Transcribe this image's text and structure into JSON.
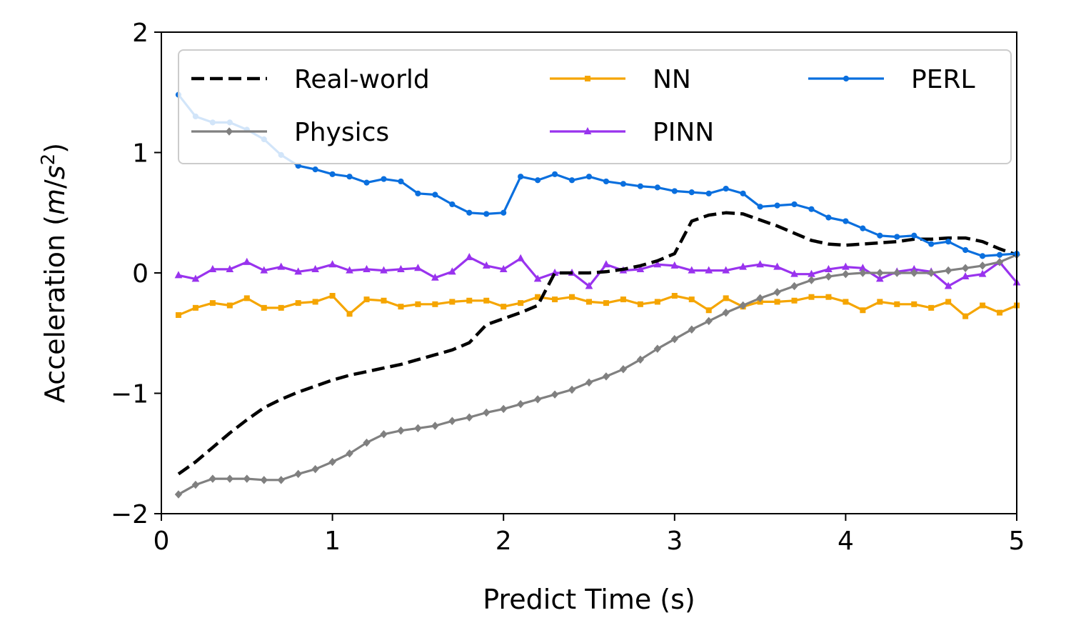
{
  "chart_data": {
    "type": "line",
    "title": "",
    "xlabel": "Predict Time (s)",
    "ylabel": {
      "prefix": "Acceleration (",
      "var": "m",
      "slash": "/",
      "var2": "s",
      "sup": "2",
      "suffix": ")"
    },
    "xlim": [
      0,
      5
    ],
    "ylim": [
      -2,
      2
    ],
    "xticks": [
      0,
      1,
      2,
      3,
      4,
      5
    ],
    "yticks": [
      -2,
      -1,
      0,
      1,
      2
    ],
    "xtick_labels": [
      "0",
      "1",
      "2",
      "3",
      "4",
      "5"
    ],
    "ytick_labels": [
      "−2",
      "−1",
      "0",
      "1",
      "2"
    ],
    "grid": false,
    "legend": {
      "placement": "top",
      "columns": 3
    },
    "x": [
      0.1,
      0.2,
      0.3,
      0.4,
      0.5,
      0.6,
      0.7,
      0.8,
      0.9,
      1.0,
      1.1,
      1.2,
      1.3,
      1.4,
      1.5,
      1.6,
      1.7,
      1.8,
      1.9,
      2.0,
      2.1,
      2.2,
      2.3,
      2.4,
      2.5,
      2.6,
      2.7,
      2.8,
      2.9,
      3.0,
      3.1,
      3.2,
      3.3,
      3.4,
      3.5,
      3.6,
      3.7,
      3.8,
      3.9,
      4.0,
      4.1,
      4.2,
      4.3,
      4.4,
      4.5,
      4.6,
      4.7,
      4.8,
      4.9,
      5.0
    ],
    "series": [
      {
        "name": "Real-world",
        "color": "#000000",
        "marker": "none",
        "dash": true,
        "values": [
          -1.67,
          -1.57,
          -1.45,
          -1.33,
          -1.22,
          -1.12,
          -1.05,
          -0.99,
          -0.94,
          -0.89,
          -0.85,
          -0.82,
          -0.79,
          -0.76,
          -0.72,
          -0.68,
          -0.64,
          -0.58,
          -0.43,
          -0.38,
          -0.33,
          -0.27,
          0.0,
          0.0,
          0.0,
          0.01,
          0.03,
          0.06,
          0.1,
          0.16,
          0.43,
          0.48,
          0.5,
          0.49,
          0.44,
          0.39,
          0.33,
          0.27,
          0.24,
          0.23,
          0.24,
          0.25,
          0.26,
          0.28,
          0.28,
          0.29,
          0.29,
          0.26,
          0.2,
          0.15
        ]
      },
      {
        "name": "Physics",
        "color": "#808080",
        "marker": "diamond",
        "dash": false,
        "values": [
          -1.84,
          -1.76,
          -1.71,
          -1.71,
          -1.71,
          -1.72,
          -1.72,
          -1.67,
          -1.63,
          -1.57,
          -1.5,
          -1.41,
          -1.34,
          -1.31,
          -1.29,
          -1.27,
          -1.23,
          -1.2,
          -1.16,
          -1.13,
          -1.09,
          -1.05,
          -1.01,
          -0.97,
          -0.91,
          -0.86,
          -0.8,
          -0.72,
          -0.63,
          -0.55,
          -0.47,
          -0.4,
          -0.33,
          -0.27,
          -0.21,
          -0.16,
          -0.11,
          -0.06,
          -0.03,
          -0.01,
          0.0,
          0.0,
          0.0,
          0.0,
          0.0,
          0.02,
          0.04,
          0.06,
          0.09,
          0.15
        ]
      },
      {
        "name": "NN",
        "color": "#f5a500",
        "marker": "square",
        "dash": false,
        "values": [
          -0.35,
          -0.29,
          -0.25,
          -0.27,
          -0.21,
          -0.29,
          -0.29,
          -0.25,
          -0.24,
          -0.19,
          -0.34,
          -0.22,
          -0.23,
          -0.28,
          -0.26,
          -0.26,
          -0.24,
          -0.23,
          -0.23,
          -0.28,
          -0.25,
          -0.2,
          -0.22,
          -0.2,
          -0.24,
          -0.25,
          -0.22,
          -0.26,
          -0.24,
          -0.19,
          -0.22,
          -0.31,
          -0.21,
          -0.28,
          -0.24,
          -0.24,
          -0.23,
          -0.2,
          -0.2,
          -0.24,
          -0.31,
          -0.24,
          -0.26,
          -0.26,
          -0.29,
          -0.24,
          -0.36,
          -0.27,
          -0.33,
          -0.27
        ]
      },
      {
        "name": "PINN",
        "color": "#9933ee",
        "marker": "triangle",
        "dash": false,
        "values": [
          -0.02,
          -0.05,
          0.03,
          0.03,
          0.09,
          0.02,
          0.05,
          0.01,
          0.03,
          0.07,
          0.02,
          0.03,
          0.02,
          0.03,
          0.04,
          -0.04,
          0.01,
          0.13,
          0.06,
          0.03,
          0.12,
          -0.05,
          0.0,
          0.0,
          -0.11,
          0.07,
          0.02,
          0.03,
          0.07,
          0.06,
          0.02,
          0.02,
          0.02,
          0.05,
          0.07,
          0.05,
          -0.01,
          -0.01,
          0.03,
          0.05,
          0.04,
          -0.05,
          0.01,
          0.03,
          0.01,
          -0.11,
          -0.03,
          -0.01,
          0.09,
          -0.08
        ]
      },
      {
        "name": "PERL",
        "color": "#0a6fde",
        "marker": "circle",
        "dash": false,
        "values": [
          1.48,
          1.3,
          1.25,
          1.25,
          1.19,
          1.11,
          0.98,
          0.89,
          0.86,
          0.82,
          0.8,
          0.75,
          0.78,
          0.76,
          0.66,
          0.65,
          0.57,
          0.5,
          0.49,
          0.5,
          0.8,
          0.77,
          0.82,
          0.77,
          0.8,
          0.76,
          0.74,
          0.72,
          0.71,
          0.68,
          0.67,
          0.66,
          0.7,
          0.66,
          0.55,
          0.56,
          0.57,
          0.53,
          0.46,
          0.43,
          0.37,
          0.31,
          0.3,
          0.31,
          0.24,
          0.26,
          0.19,
          0.14,
          0.15,
          0.16
        ]
      }
    ]
  }
}
